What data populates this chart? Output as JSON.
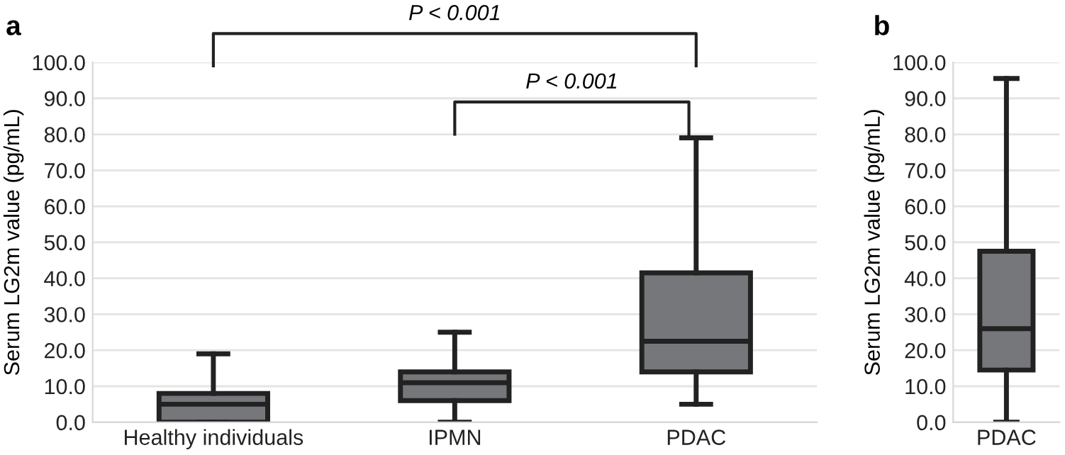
{
  "chart_data": [
    {
      "type": "box",
      "ylabel": "Serum LG2m value (pg/mL)",
      "categories": [
        "Healthy individuals",
        "IPMN",
        "PDAC"
      ],
      "color": "#76777b",
      "boxes": [
        {
          "low": 0,
          "q1": 0,
          "median": 5,
          "q3": 8,
          "high": 19
        },
        {
          "low": 0,
          "q1": 6,
          "median": 11,
          "q3": 14,
          "high": 25
        },
        {
          "low": 5,
          "q1": 14,
          "median": 22.5,
          "q3": 41.5,
          "high": 79
        }
      ],
      "ylim": [
        0,
        100
      ],
      "yticks": [
        {
          "value": 0,
          "label": "0.0"
        },
        {
          "value": 10,
          "label": "10.0"
        },
        {
          "value": 20,
          "label": "20.0"
        },
        {
          "value": 30,
          "label": "30.0"
        },
        {
          "value": 40,
          "label": "40.0"
        },
        {
          "value": 50,
          "label": "50.0"
        },
        {
          "value": 60,
          "label": "60.0"
        },
        {
          "value": 70,
          "label": "70.0"
        },
        {
          "value": 80,
          "label": "80.0"
        },
        {
          "value": 90,
          "label": "90.0"
        },
        {
          "value": 100,
          "label": "100.0"
        }
      ],
      "grid": "y",
      "annotations": [
        "a",
        "P < 0.001",
        "P < 0.001"
      ]
    },
    {
      "type": "box",
      "ylabel": "Serum LG2m value (pg/mL)",
      "categories": [
        "PDAC"
      ],
      "color": "#76777b",
      "boxes": [
        {
          "low": 0,
          "q1": 14.5,
          "median": 26,
          "q3": 47.5,
          "high": 95.5
        }
      ],
      "ylim": [
        0,
        100
      ],
      "yticks": [
        {
          "value": 0,
          "label": "0.0"
        },
        {
          "value": 10,
          "label": "10.0"
        },
        {
          "value": 20,
          "label": "20.0"
        },
        {
          "value": 30,
          "label": "30.0"
        },
        {
          "value": 40,
          "label": "40.0"
        },
        {
          "value": 50,
          "label": "50.0"
        },
        {
          "value": 60,
          "label": "60.0"
        },
        {
          "value": 70,
          "label": "70.0"
        },
        {
          "value": 80,
          "label": "80.0"
        },
        {
          "value": 90,
          "label": "90.0"
        },
        {
          "value": 100,
          "label": "100.0"
        }
      ],
      "grid": "y",
      "annotations": [
        "b"
      ]
    }
  ]
}
